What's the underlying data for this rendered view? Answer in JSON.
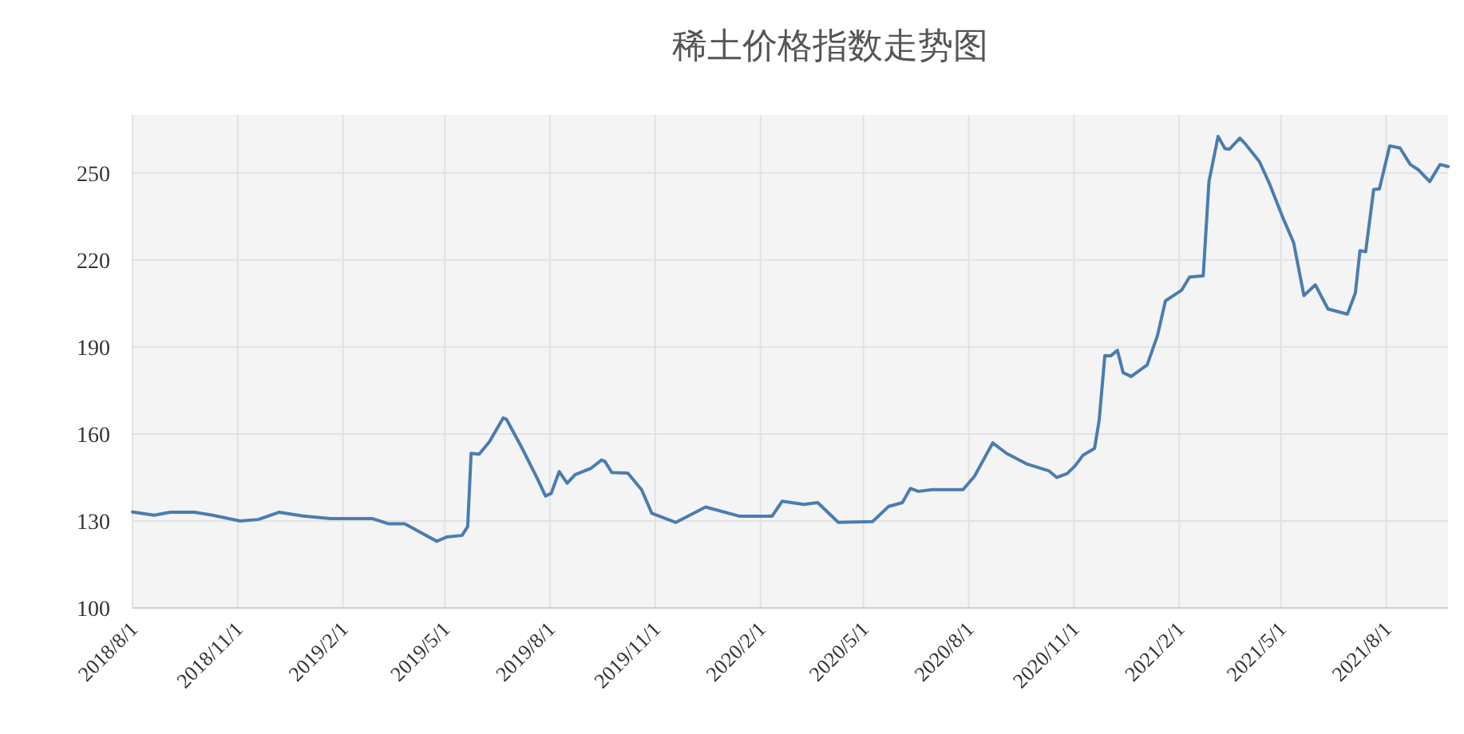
{
  "chart_data": {
    "type": "line",
    "title": "稀土价格指数走势图",
    "x": [
      "2018-08-01",
      "2018-08-20",
      "2018-09-03",
      "2018-09-24",
      "2018-10-10",
      "2018-11-03",
      "2018-11-19",
      "2018-12-07",
      "2018-12-28",
      "2019-01-21",
      "2019-02-27",
      "2019-03-13",
      "2019-03-27",
      "2019-04-10",
      "2019-04-24",
      "2019-05-03",
      "2019-05-16",
      "2019-05-21",
      "2019-05-24",
      "2019-05-31",
      "2019-06-09",
      "2019-06-21",
      "2019-06-24",
      "2019-07-07",
      "2019-07-21",
      "2019-07-28",
      "2019-08-02",
      "2019-08-09",
      "2019-08-16",
      "2019-08-23",
      "2019-09-06",
      "2019-09-15",
      "2019-09-18",
      "2019-09-24",
      "2019-10-08",
      "2019-10-20",
      "2019-10-29",
      "2019-11-19",
      "2019-12-15",
      "2020-01-14",
      "2020-02-11",
      "2020-02-20",
      "2020-03-10",
      "2020-03-22",
      "2020-04-09",
      "2020-05-09",
      "2020-05-23",
      "2020-06-04",
      "2020-06-11",
      "2020-06-18",
      "2020-06-30",
      "2020-07-27",
      "2020-08-06",
      "2020-08-22",
      "2020-09-03",
      "2020-09-21",
      "2020-10-10",
      "2020-10-17",
      "2020-10-26",
      "2020-11-02",
      "2020-11-09",
      "2020-11-19",
      "2020-11-23",
      "2020-11-28",
      "2020-12-03",
      "2020-12-09",
      "2020-12-14",
      "2020-12-21",
      "2021-01-04",
      "2021-01-13",
      "2021-01-20",
      "2021-02-03",
      "2021-02-10",
      "2021-02-22",
      "2021-02-27",
      "2021-03-07",
      "2021-03-13",
      "2021-03-17",
      "2021-03-26",
      "2021-03-31",
      "2021-04-12",
      "2021-04-21",
      "2021-05-03",
      "2021-05-12",
      "2021-05-21",
      "2021-05-31",
      "2021-06-11",
      "2021-06-28",
      "2021-07-05",
      "2021-07-09",
      "2021-07-14",
      "2021-07-21",
      "2021-07-26",
      "2021-08-04",
      "2021-08-13",
      "2021-08-22",
      "2021-08-29",
      "2021-09-08",
      "2021-09-17",
      "2021-09-24"
    ],
    "series": [
      {
        "color": "#4a7db0",
        "values": [
          133.1,
          132,
          133,
          133,
          132,
          130,
          130.5,
          133,
          131.7,
          130.8,
          130.8,
          129,
          129,
          126,
          123,
          124.5,
          125,
          128,
          153.3,
          153,
          157.3,
          165.5,
          165,
          155.5,
          144.5,
          138.6,
          139.5,
          147,
          143,
          146,
          148.2,
          151,
          150.5,
          146.7,
          146.5,
          140.8,
          132.6,
          129.5,
          134.8,
          131.6,
          131.6,
          136.8,
          135.7,
          136.3,
          129.5,
          129.8,
          135,
          136.3,
          141.2,
          140.2,
          140.8,
          140.8,
          145.4,
          156.9,
          153.3,
          149.6,
          147.3,
          145,
          146.3,
          149,
          152.7,
          155,
          164.6,
          187,
          186.9,
          188.8,
          181.1,
          179.8,
          183.8,
          193.9,
          205.9,
          209.5,
          214.1,
          214.5,
          247,
          262.6,
          258.4,
          258.2,
          262,
          259.9,
          254,
          246.2,
          234.2,
          226,
          207.7,
          211.4,
          203.1,
          201.3,
          208.6,
          223.2,
          222.8,
          244.3,
          244.5,
          259.3,
          258.6,
          252.9,
          251.1,
          247,
          252.9,
          252.2
        ]
      }
    ],
    "xlim": [
      "2018-08-01",
      "2021-09-24"
    ],
    "xticks": [
      {
        "value": "2018-08-01",
        "label": "2018/8/1"
      },
      {
        "value": "2018-11-01",
        "label": "2018/11/1"
      },
      {
        "value": "2019-02-01",
        "label": "2019/2/1"
      },
      {
        "value": "2019-05-01",
        "label": "2019/5/1"
      },
      {
        "value": "2019-08-01",
        "label": "2019/8/1"
      },
      {
        "value": "2019-11-01",
        "label": "2019/11/1"
      },
      {
        "value": "2020-02-01",
        "label": "2020/2/1"
      },
      {
        "value": "2020-05-01",
        "label": "2020/5/1"
      },
      {
        "value": "2020-08-01",
        "label": "2020/8/1"
      },
      {
        "value": "2020-11-01",
        "label": "2020/11/1"
      },
      {
        "value": "2021-02-01",
        "label": "2021/2/1"
      },
      {
        "value": "2021-05-01",
        "label": "2021/5/1"
      },
      {
        "value": "2021-08-01",
        "label": "2021/8/1"
      }
    ],
    "ylim": [
      100,
      270
    ],
    "yticks": [
      100,
      130,
      160,
      190,
      220,
      250
    ],
    "grid": true,
    "marker": "none",
    "line_style": "solid"
  }
}
